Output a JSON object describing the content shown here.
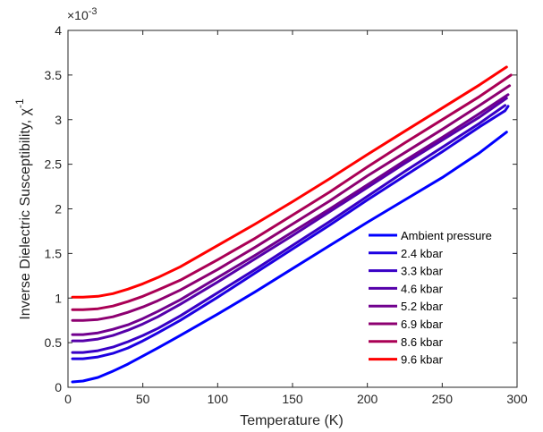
{
  "chart_data": {
    "type": "line",
    "xlabel": "Temperature (K)",
    "ylabel_main": "Inverse Dielectric Susceptibility, χ",
    "ylabel_exp": "-1",
    "y_multiplier": "×10",
    "y_multiplier_exp": "-3",
    "xlim": [
      0,
      300
    ],
    "ylim": [
      0,
      4
    ],
    "xticks": [
      0,
      50,
      100,
      150,
      200,
      250,
      300
    ],
    "yticks": [
      0,
      0.5,
      1,
      1.5,
      2,
      2.5,
      3,
      3.5,
      4
    ],
    "xtick_labels": [
      "0",
      "50",
      "100",
      "150",
      "200",
      "250",
      "300"
    ],
    "ytick_labels": [
      "0",
      "0.5",
      "1",
      "1.5",
      "2",
      "2.5",
      "3",
      "3.5",
      "4"
    ],
    "grid": false,
    "legend_position": "lower-right",
    "series": [
      {
        "name": "Ambient pressure",
        "color": "#0000ff",
        "x": [
          3,
          10,
          20,
          30,
          40,
          50,
          60,
          75,
          100,
          125,
          150,
          175,
          200,
          225,
          250,
          275,
          293
        ],
        "y": [
          0.06,
          0.07,
          0.11,
          0.18,
          0.26,
          0.35,
          0.44,
          0.58,
          0.82,
          1.07,
          1.33,
          1.59,
          1.85,
          2.1,
          2.35,
          2.63,
          2.86
        ]
      },
      {
        "name": "2.4 kbar",
        "color": "#1c00e2",
        "x": [
          3,
          10,
          20,
          30,
          40,
          50,
          60,
          75,
          100,
          125,
          150,
          175,
          200,
          225,
          250,
          275,
          292,
          294
        ],
        "y": [
          0.32,
          0.32,
          0.34,
          0.38,
          0.44,
          0.52,
          0.61,
          0.75,
          1.01,
          1.28,
          1.55,
          1.82,
          2.1,
          2.37,
          2.64,
          2.92,
          3.1,
          3.15
        ]
      },
      {
        "name": "3.3 kbar",
        "color": "#3800c6",
        "x": [
          3,
          10,
          20,
          30,
          40,
          50,
          60,
          75,
          100,
          125,
          150,
          175,
          200,
          225,
          250,
          275,
          292
        ],
        "y": [
          0.39,
          0.39,
          0.41,
          0.45,
          0.51,
          0.58,
          0.66,
          0.8,
          1.06,
          1.32,
          1.59,
          1.86,
          2.14,
          2.42,
          2.69,
          2.96,
          3.16
        ]
      },
      {
        "name": "4.6 kbar",
        "color": "#5500aa",
        "x": [
          3,
          10,
          20,
          30,
          40,
          50,
          60,
          75,
          100,
          125,
          150,
          175,
          200,
          225,
          250,
          275,
          293
        ],
        "y": [
          0.52,
          0.52,
          0.54,
          0.58,
          0.64,
          0.71,
          0.79,
          0.93,
          1.18,
          1.44,
          1.7,
          1.97,
          2.24,
          2.51,
          2.77,
          3.03,
          3.24
        ]
      },
      {
        "name": "5.2 kbar",
        "color": "#71008e",
        "x": [
          3,
          10,
          20,
          30,
          40,
          50,
          60,
          75,
          100,
          125,
          150,
          175,
          200,
          225,
          250,
          275,
          294
        ],
        "y": [
          0.59,
          0.59,
          0.61,
          0.65,
          0.7,
          0.77,
          0.85,
          0.98,
          1.23,
          1.48,
          1.74,
          2.0,
          2.27,
          2.54,
          2.8,
          3.07,
          3.28
        ]
      },
      {
        "name": "6.9 kbar",
        "color": "#8d0071",
        "x": [
          3,
          10,
          20,
          30,
          40,
          50,
          60,
          75,
          100,
          125,
          150,
          175,
          200,
          225,
          250,
          275,
          295
        ],
        "y": [
          0.75,
          0.75,
          0.76,
          0.79,
          0.84,
          0.9,
          0.97,
          1.09,
          1.32,
          1.57,
          1.83,
          2.09,
          2.37,
          2.63,
          2.89,
          3.16,
          3.38
        ]
      },
      {
        "name": "8.6 kbar",
        "color": "#aa0055",
        "x": [
          3,
          10,
          20,
          30,
          40,
          50,
          60,
          75,
          100,
          125,
          150,
          175,
          200,
          225,
          250,
          275,
          296
        ],
        "y": [
          0.87,
          0.87,
          0.88,
          0.91,
          0.96,
          1.02,
          1.09,
          1.2,
          1.43,
          1.67,
          1.93,
          2.19,
          2.47,
          2.74,
          3.0,
          3.26,
          3.5
        ]
      },
      {
        "name": "9.6 kbar",
        "color": "#ff0000",
        "x": [
          3,
          10,
          20,
          30,
          40,
          50,
          60,
          75,
          100,
          125,
          150,
          175,
          200,
          225,
          250,
          275,
          293
        ],
        "y": [
          1.01,
          1.01,
          1.02,
          1.05,
          1.1,
          1.16,
          1.23,
          1.35,
          1.59,
          1.83,
          2.08,
          2.34,
          2.61,
          2.87,
          3.13,
          3.39,
          3.59
        ]
      }
    ]
  }
}
